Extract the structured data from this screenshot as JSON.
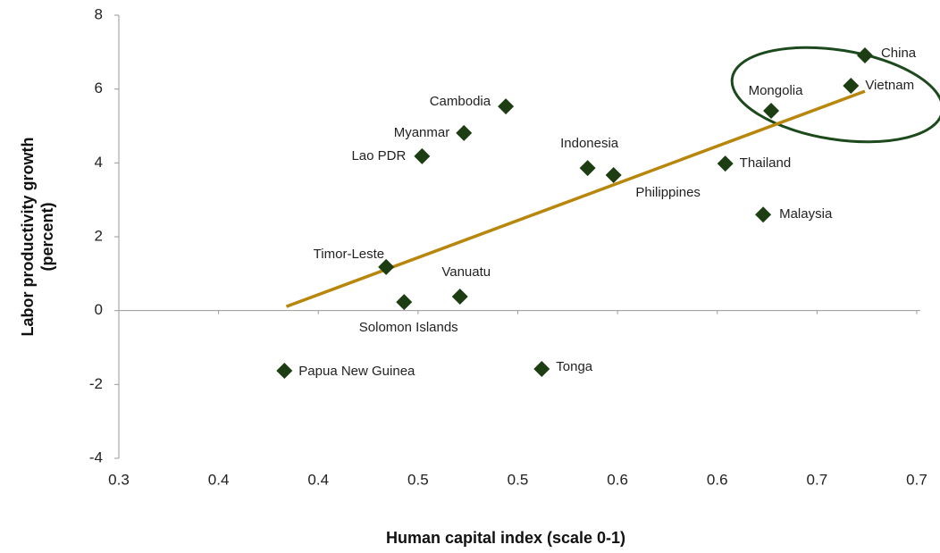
{
  "chart_data": {
    "type": "scatter",
    "xlabel": "Human capital index (scale 0-1)",
    "ylabel": [
      "Labor productivity growth",
      "(percent)"
    ],
    "labels": [
      "China",
      "Vietnam",
      "Mongolia",
      "Cambodia",
      "Myanmar",
      "Lao PDR",
      "Indonesia",
      "Philippines",
      "Thailand",
      "Malaysia",
      "Timor-Leste",
      "Vanuatu",
      "Solomon Islands",
      "Papua New Guinea",
      "Tonga"
    ],
    "x": [
      0.674,
      0.667,
      0.627,
      0.494,
      0.473,
      0.452,
      0.535,
      0.548,
      0.604,
      0.623,
      0.434,
      0.471,
      0.443,
      0.383,
      0.512
    ],
    "y": [
      6.91,
      6.09,
      5.41,
      5.53,
      4.81,
      4.18,
      3.86,
      3.67,
      3.98,
      2.6,
      1.18,
      0.38,
      0.23,
      -1.63,
      -1.58
    ],
    "color": "#1d3d12",
    "trendline": {
      "x": [
        0.384,
        0.674
      ],
      "y": [
        0.11,
        5.94
      ],
      "color": "#b8860b"
    },
    "xlim": [
      0.3,
      0.7
    ],
    "xticks": [
      0.3,
      {
        "value": 0.35,
        "label": "0.4"
      },
      0.4,
      {
        "value": 0.45,
        "label": "0.5"
      },
      0.5,
      {
        "value": 0.55,
        "label": "0.6"
      },
      0.6,
      {
        "value": 0.65,
        "label": "0.7"
      },
      0.7
    ],
    "ylim": [
      -4,
      8
    ],
    "yticks": [
      -4,
      -2,
      0,
      2,
      4,
      6,
      8
    ]
  }
}
